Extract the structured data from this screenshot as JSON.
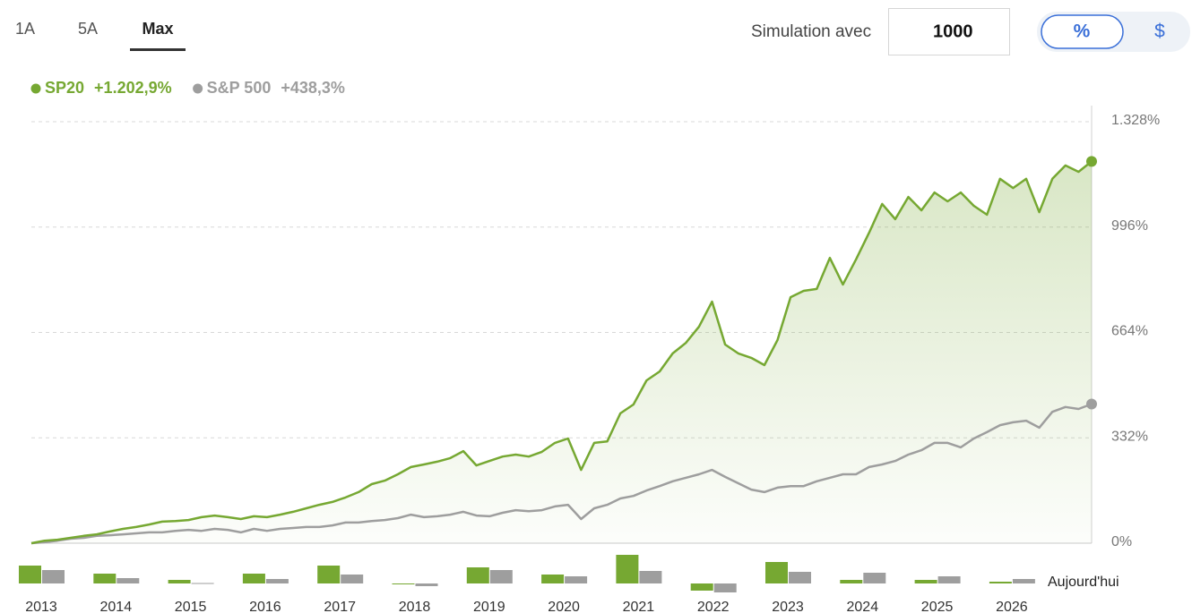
{
  "controls": {
    "tabs": [
      "1A",
      "5A",
      "Max"
    ],
    "active_tab": 2,
    "simulation_label": "Simulation avec",
    "simulation_value": "1000",
    "units": [
      "%",
      "$"
    ],
    "active_unit": 0
  },
  "chart_data": [
    {
      "type": "line",
      "ylim": [
        0,
        1328
      ],
      "yticks": [
        {
          "value": 0,
          "label": "0%"
        },
        {
          "value": 332,
          "label": "332%"
        },
        {
          "value": 664,
          "label": "664%"
        },
        {
          "value": 996,
          "label": "996%"
        },
        {
          "value": 1328,
          "label": "1.328%"
        }
      ],
      "grid": true,
      "series": [
        {
          "name": "SP20",
          "legend_label": "+1.202,9%",
          "color": "#76a832",
          "fill": true,
          "values": [
            0,
            8,
            11,
            17,
            23,
            28,
            37,
            45,
            51,
            59,
            68,
            70,
            73,
            82,
            87,
            82,
            76,
            85,
            82,
            90,
            99,
            110,
            121,
            130,
            144,
            161,
            186,
            197,
            217,
            240,
            248,
            257,
            268,
            290,
            245,
            259,
            273,
            279,
            273,
            288,
            316,
            330,
            231,
            316,
            321,
            409,
            437,
            513,
            541,
            598,
            631,
            682,
            761,
            626,
            598,
            584,
            561,
            640,
            775,
            795,
            801,
            899,
            815,
            894,
            978,
            1069,
            1021,
            1091,
            1049,
            1105,
            1077,
            1105,
            1063,
            1035,
            1148,
            1119,
            1148,
            1043,
            1148,
            1190,
            1170,
            1202.9
          ]
        },
        {
          "name": "S&P 500",
          "legend_label": "+438,3%",
          "color": "#9e9e9e",
          "fill": false,
          "values": [
            0,
            3,
            8,
            14,
            17,
            23,
            25,
            28,
            31,
            34,
            34,
            39,
            42,
            39,
            45,
            42,
            34,
            45,
            39,
            45,
            48,
            51,
            51,
            56,
            65,
            65,
            70,
            73,
            79,
            90,
            82,
            85,
            90,
            99,
            87,
            85,
            96,
            104,
            101,
            104,
            116,
            121,
            76,
            110,
            121,
            141,
            149,
            166,
            180,
            195,
            206,
            217,
            231,
            209,
            189,
            169,
            161,
            175,
            180,
            180,
            195,
            206,
            217,
            217,
            240,
            248,
            259,
            279,
            293,
            316,
            316,
            302,
            330,
            350,
            372,
            381,
            386,
            364,
            414,
            429,
            423,
            438.3
          ]
        }
      ]
    },
    {
      "type": "bar",
      "categories": [
        "2013",
        "2014",
        "2015",
        "2016",
        "2017",
        "2018",
        "2019",
        "2020",
        "2021",
        "2022",
        "2023",
        "2024",
        "2025",
        "2026"
      ],
      "annotation": "Aujourd'hui",
      "series": [
        {
          "color": "#76a832",
          "values": [
            40,
            22,
            8,
            22,
            40,
            -2,
            36,
            20,
            64,
            -16,
            48,
            8,
            8,
            4
          ]
        },
        {
          "color": "#9e9e9e",
          "values": [
            30,
            12,
            1,
            10,
            20,
            -6,
            30,
            16,
            28,
            -20,
            26,
            24,
            16,
            10
          ]
        }
      ]
    }
  ]
}
